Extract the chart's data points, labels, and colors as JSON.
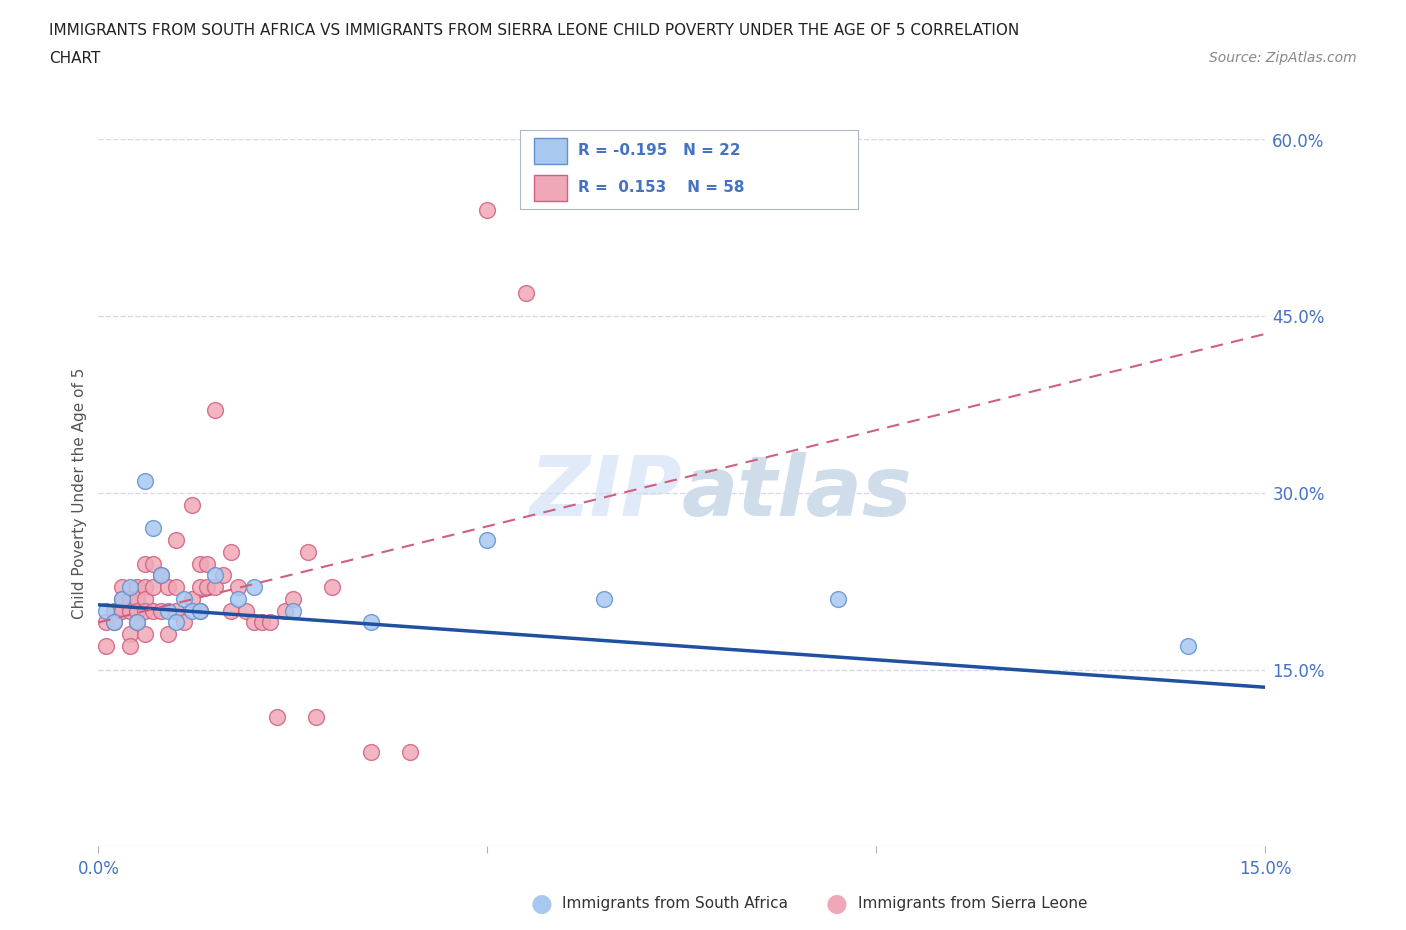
{
  "title_line1": "IMMIGRANTS FROM SOUTH AFRICA VS IMMIGRANTS FROM SIERRA LEONE CHILD POVERTY UNDER THE AGE OF 5 CORRELATION",
  "title_line2": "CHART",
  "source": "Source: ZipAtlas.com",
  "ylabel": "Child Poverty Under the Age of 5",
  "xlim": [
    0.0,
    0.15
  ],
  "ylim": [
    0.0,
    0.6
  ],
  "watermark": "ZIPatlas",
  "south_africa_color": "#a8c8f0",
  "sierra_leone_color": "#f0a8b8",
  "south_africa_edge": "#6090d0",
  "sierra_leone_edge": "#d06080",
  "south_africa_line_color": "#2050a0",
  "sierra_leone_line_color": "#d06080",
  "grid_color": "#d8d8e8",
  "axis_color": "#4472c4",
  "south_africa_x": [
    0.001,
    0.002,
    0.003,
    0.004,
    0.005,
    0.006,
    0.007,
    0.008,
    0.009,
    0.01,
    0.011,
    0.012,
    0.013,
    0.015,
    0.018,
    0.02,
    0.025,
    0.035,
    0.05,
    0.065,
    0.095,
    0.14
  ],
  "south_africa_y": [
    0.2,
    0.19,
    0.21,
    0.22,
    0.19,
    0.31,
    0.27,
    0.23,
    0.2,
    0.19,
    0.21,
    0.2,
    0.2,
    0.23,
    0.21,
    0.22,
    0.2,
    0.19,
    0.26,
    0.21,
    0.21,
    0.17
  ],
  "sierra_leone_x": [
    0.001,
    0.001,
    0.002,
    0.002,
    0.003,
    0.003,
    0.003,
    0.004,
    0.004,
    0.004,
    0.004,
    0.005,
    0.005,
    0.005,
    0.005,
    0.006,
    0.006,
    0.006,
    0.006,
    0.006,
    0.007,
    0.007,
    0.007,
    0.008,
    0.008,
    0.009,
    0.009,
    0.01,
    0.01,
    0.01,
    0.011,
    0.012,
    0.012,
    0.013,
    0.013,
    0.013,
    0.014,
    0.014,
    0.015,
    0.015,
    0.016,
    0.017,
    0.017,
    0.018,
    0.019,
    0.02,
    0.021,
    0.022,
    0.023,
    0.024,
    0.025,
    0.027,
    0.028,
    0.03,
    0.035,
    0.04,
    0.05,
    0.055
  ],
  "sierra_leone_y": [
    0.19,
    0.17,
    0.2,
    0.19,
    0.22,
    0.21,
    0.2,
    0.21,
    0.2,
    0.18,
    0.17,
    0.22,
    0.21,
    0.2,
    0.19,
    0.24,
    0.22,
    0.21,
    0.2,
    0.18,
    0.24,
    0.22,
    0.2,
    0.23,
    0.2,
    0.22,
    0.18,
    0.26,
    0.22,
    0.2,
    0.19,
    0.29,
    0.21,
    0.24,
    0.22,
    0.2,
    0.24,
    0.22,
    0.37,
    0.22,
    0.23,
    0.25,
    0.2,
    0.22,
    0.2,
    0.19,
    0.19,
    0.19,
    0.11,
    0.2,
    0.21,
    0.25,
    0.11,
    0.22,
    0.08,
    0.08,
    0.54,
    0.47
  ],
  "sa_line_x0": 0.0,
  "sa_line_x1": 0.15,
  "sa_line_y0": 0.205,
  "sa_line_y1": 0.135,
  "sl_line_x0": 0.0,
  "sl_line_x1": 0.15,
  "sl_line_y0": 0.19,
  "sl_line_y1": 0.435
}
